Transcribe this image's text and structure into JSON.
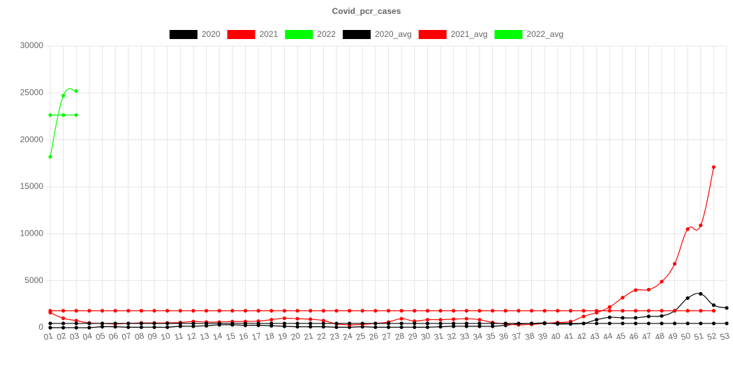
{
  "chart_data": {
    "type": "line",
    "title": "Covid_pcr_cases",
    "categories": [
      "01",
      "02",
      "03",
      "04",
      "05",
      "06",
      "07",
      "08",
      "09",
      "10",
      "11",
      "12",
      "13",
      "14",
      "15",
      "16",
      "17",
      "18",
      "19",
      "20",
      "21",
      "22",
      "23",
      "24",
      "25",
      "26",
      "27",
      "28",
      "29",
      "30",
      "31",
      "32",
      "33",
      "34",
      "35",
      "36",
      "37",
      "38",
      "39",
      "40",
      "41",
      "42",
      "43",
      "44",
      "45",
      "46",
      "47",
      "48",
      "49",
      "50",
      "51",
      "52",
      "53"
    ],
    "series": [
      {
        "name": "2020",
        "color": "#000000",
        "values": [
          0,
          0,
          0,
          0,
          100,
          100,
          50,
          50,
          50,
          50,
          150,
          150,
          200,
          300,
          300,
          250,
          250,
          200,
          150,
          100,
          100,
          100,
          50,
          50,
          100,
          50,
          50,
          50,
          50,
          50,
          100,
          150,
          150,
          150,
          150,
          250,
          400,
          450,
          500,
          400,
          400,
          450,
          850,
          1100,
          1050,
          1050,
          1200,
          1250,
          1800,
          3150,
          3600,
          2400,
          2100
        ]
      },
      {
        "name": "2021",
        "color": "#ff0000",
        "values": [
          1600,
          1000,
          750,
          500,
          450,
          400,
          450,
          500,
          500,
          500,
          550,
          650,
          600,
          600,
          650,
          650,
          700,
          850,
          1000,
          950,
          900,
          750,
          400,
          300,
          350,
          450,
          600,
          950,
          700,
          850,
          850,
          900,
          950,
          850,
          550,
          400,
          300,
          350,
          450,
          550,
          650,
          1200,
          1600,
          2200,
          3200,
          4000,
          4050,
          4900,
          6800,
          10500,
          10900,
          17100,
          null
        ]
      },
      {
        "name": "2022",
        "color": "#00ff00",
        "values": [
          18200,
          24700,
          25200,
          null,
          null,
          null,
          null,
          null,
          null,
          null,
          null,
          null,
          null,
          null,
          null,
          null,
          null,
          null,
          null,
          null,
          null,
          null,
          null,
          null,
          null,
          null,
          null,
          null,
          null,
          null,
          null,
          null,
          null,
          null,
          null,
          null,
          null,
          null,
          null,
          null,
          null,
          null,
          null,
          null,
          null,
          null,
          null,
          null,
          null,
          null,
          null,
          null,
          null
        ]
      },
      {
        "name": "2020_avg",
        "color": "#000000",
        "values": [
          450,
          450,
          450,
          450,
          450,
          450,
          450,
          450,
          450,
          450,
          450,
          450,
          450,
          450,
          450,
          450,
          450,
          450,
          450,
          450,
          450,
          450,
          450,
          450,
          450,
          450,
          450,
          450,
          450,
          450,
          450,
          450,
          450,
          450,
          450,
          450,
          450,
          450,
          450,
          450,
          450,
          450,
          450,
          450,
          450,
          450,
          450,
          450,
          450,
          450,
          450,
          450,
          450
        ]
      },
      {
        "name": "2021_avg",
        "color": "#ff0000",
        "values": [
          1800,
          1800,
          1800,
          1800,
          1800,
          1800,
          1800,
          1800,
          1800,
          1800,
          1800,
          1800,
          1800,
          1800,
          1800,
          1800,
          1800,
          1800,
          1800,
          1800,
          1800,
          1800,
          1800,
          1800,
          1800,
          1800,
          1800,
          1800,
          1800,
          1800,
          1800,
          1800,
          1800,
          1800,
          1800,
          1800,
          1800,
          1800,
          1800,
          1800,
          1800,
          1800,
          1800,
          1800,
          1800,
          1800,
          1800,
          1800,
          1800,
          1800,
          1800,
          1800,
          null
        ]
      },
      {
        "name": "2022_avg",
        "color": "#00ff00",
        "values": [
          22650,
          22650,
          22650,
          null,
          null,
          null,
          null,
          null,
          null,
          null,
          null,
          null,
          null,
          null,
          null,
          null,
          null,
          null,
          null,
          null,
          null,
          null,
          null,
          null,
          null,
          null,
          null,
          null,
          null,
          null,
          null,
          null,
          null,
          null,
          null,
          null,
          null,
          null,
          null,
          null,
          null,
          null,
          null,
          null,
          null,
          null,
          null,
          null,
          null,
          null,
          null,
          null,
          null
        ]
      }
    ],
    "ylim": [
      0,
      30000
    ],
    "yticks": [
      0,
      5000,
      10000,
      15000,
      20000,
      25000,
      30000
    ],
    "grid": true,
    "legend": "top"
  }
}
